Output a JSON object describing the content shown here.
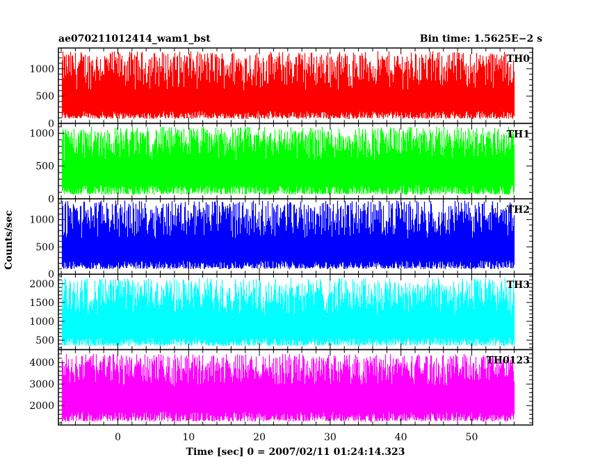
{
  "header": {
    "left": "ae070211012414_wam1_bst",
    "right": "Bin time: 1.5625E−2 s"
  },
  "ylabel": "Counts/sec",
  "xlabel": "Time [sec] 0 = 2007/02/11 01:24:14.323",
  "chart_data": [
    {
      "type": "area",
      "name": "TH0",
      "color": "#ff0000",
      "xlim": [
        -8.4,
        58.6
      ],
      "ylim": [
        0,
        1380
      ],
      "x_start": -8.0,
      "x_end": 56.0,
      "bin": 0.015625,
      "mean": 600,
      "noise_min": 80,
      "noise_max": 1320,
      "yticks": [
        0,
        500,
        1000
      ]
    },
    {
      "type": "area",
      "name": "TH1",
      "color": "#00ff00",
      "xlim": [
        -8.4,
        58.6
      ],
      "ylim": [
        0,
        1150
      ],
      "x_start": -8.0,
      "x_end": 56.0,
      "bin": 0.015625,
      "mean": 580,
      "noise_min": 60,
      "noise_max": 1100,
      "yticks": [
        0,
        500,
        1000
      ]
    },
    {
      "type": "area",
      "name": "TH2",
      "color": "#0000ff",
      "xlim": [
        -8.4,
        58.6
      ],
      "ylim": [
        0,
        1380
      ],
      "x_start": -8.0,
      "x_end": 56.0,
      "bin": 0.015625,
      "mean": 650,
      "noise_min": 90,
      "noise_max": 1350,
      "yticks": [
        0,
        500,
        1000
      ]
    },
    {
      "type": "area",
      "name": "TH3",
      "color": "#00ffff",
      "xlim": [
        -8.4,
        58.6
      ],
      "ylim": [
        250,
        2250
      ],
      "x_start": -8.0,
      "x_end": 56.0,
      "bin": 0.015625,
      "mean": 1150,
      "noise_min": 340,
      "noise_max": 2150,
      "yticks": [
        500,
        1000,
        1500,
        2000
      ]
    },
    {
      "type": "area",
      "name": "TH0123",
      "color": "#ff00ff",
      "xlim": [
        -8.4,
        58.6
      ],
      "ylim": [
        1100,
        4600
      ],
      "x_start": -8.0,
      "x_end": 56.0,
      "bin": 0.015625,
      "mean": 2900,
      "noise_min": 1250,
      "noise_max": 4400,
      "yticks": [
        2000,
        3000,
        4000
      ]
    }
  ],
  "xaxis": {
    "ticks": [
      0,
      10,
      20,
      30,
      40,
      50
    ],
    "minor_step": 2
  }
}
